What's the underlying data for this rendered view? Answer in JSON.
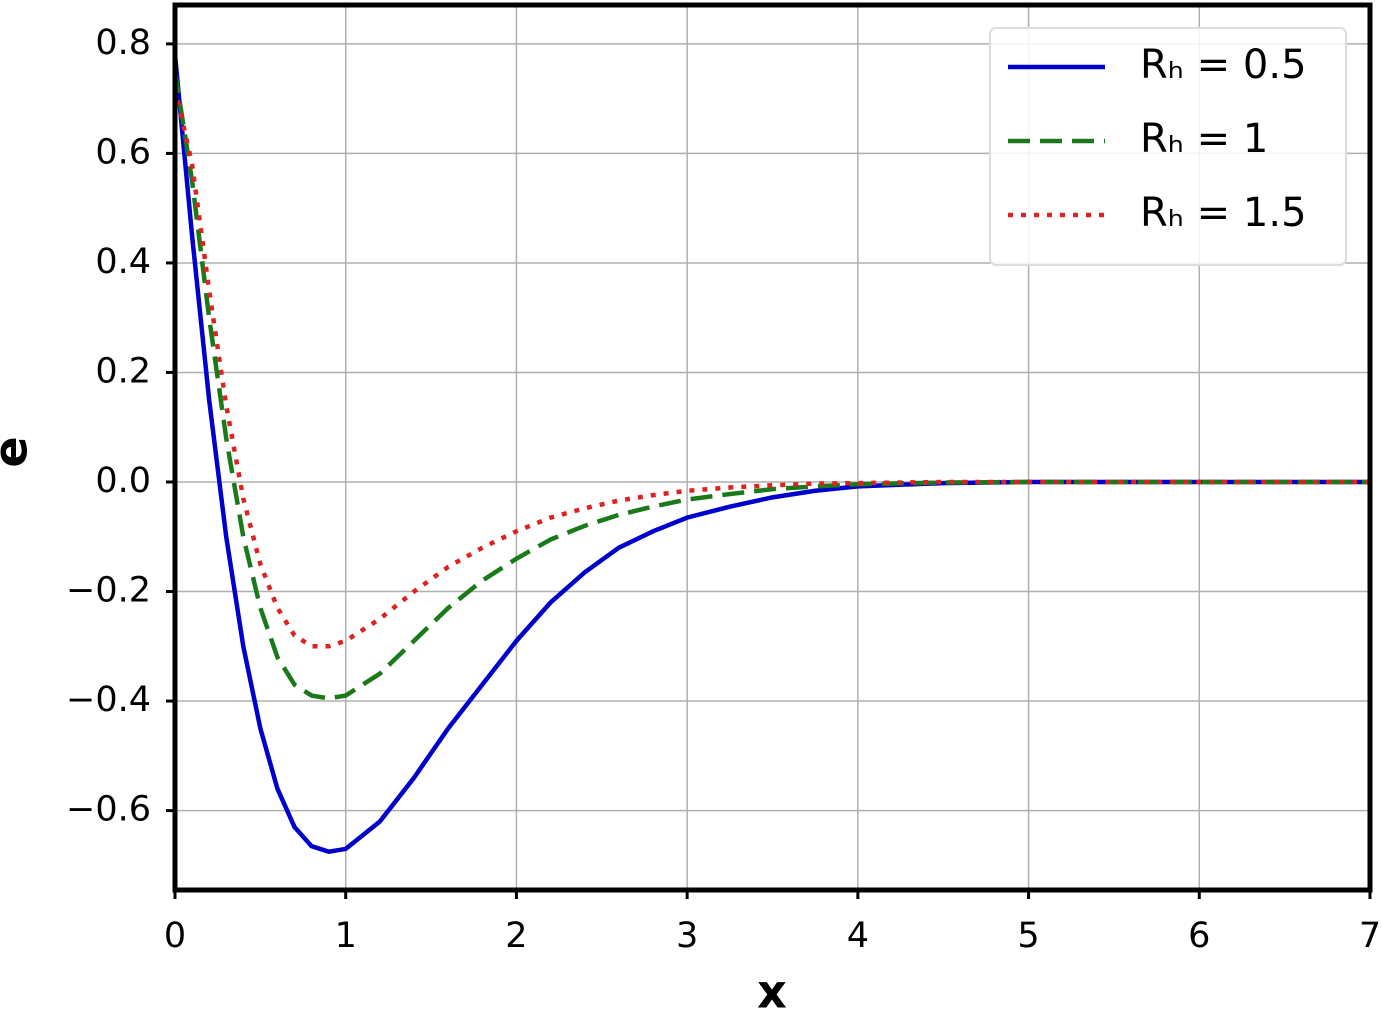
{
  "chart_data": {
    "type": "line",
    "xlabel": "x",
    "ylabel": "e",
    "x": [
      0,
      0.1,
      0.2,
      0.3,
      0.4,
      0.5,
      0.6,
      0.7,
      0.8,
      0.9,
      1.0,
      1.2,
      1.4,
      1.6,
      1.8,
      2.0,
      2.2,
      2.4,
      2.6,
      2.8,
      3.0,
      3.25,
      3.5,
      3.75,
      4,
      4.5,
      5,
      6,
      7
    ],
    "series": [
      {
        "name": "Rₕ = 0.5",
        "color": "#0000cc",
        "linestyle": "solid",
        "values": [
          0.78,
          0.45,
          0.15,
          -0.1,
          -0.3,
          -0.45,
          -0.56,
          -0.63,
          -0.665,
          -0.675,
          -0.67,
          -0.62,
          -0.54,
          -0.45,
          -0.37,
          -0.29,
          -0.22,
          -0.165,
          -0.12,
          -0.09,
          -0.065,
          -0.045,
          -0.028,
          -0.016,
          -0.008,
          -0.002,
          0,
          0,
          0
        ]
      },
      {
        "name": "Rₕ = 1",
        "color": "#1a7a1a",
        "linestyle": "dashed",
        "values": [
          0.75,
          0.55,
          0.3,
          0.08,
          -0.1,
          -0.23,
          -0.32,
          -0.37,
          -0.39,
          -0.395,
          -0.39,
          -0.35,
          -0.29,
          -0.23,
          -0.18,
          -0.14,
          -0.105,
          -0.08,
          -0.06,
          -0.045,
          -0.032,
          -0.022,
          -0.013,
          -0.008,
          -0.004,
          -0.001,
          0,
          0,
          0
        ]
      },
      {
        "name": "Rₕ = 1.5",
        "color": "#dd2222",
        "linestyle": "dotted",
        "values": [
          0.72,
          0.58,
          0.35,
          0.14,
          -0.03,
          -0.15,
          -0.23,
          -0.28,
          -0.3,
          -0.3,
          -0.29,
          -0.25,
          -0.2,
          -0.155,
          -0.12,
          -0.09,
          -0.065,
          -0.048,
          -0.034,
          -0.024,
          -0.016,
          -0.01,
          -0.006,
          -0.003,
          -0.002,
          0,
          0,
          0,
          0
        ]
      }
    ],
    "xlim": [
      0,
      7
    ],
    "xticks": [
      0,
      1,
      2,
      3,
      4,
      5,
      6,
      7
    ],
    "ylim": [
      -0.745,
      0.871
    ],
    "yticks": [
      {
        "value": -0.6,
        "label": "−0.6"
      },
      {
        "value": -0.4,
        "label": "−0.4"
      },
      {
        "value": -0.2,
        "label": "−0.2"
      },
      {
        "value": 0,
        "label": "0.0"
      },
      0.2,
      0.4,
      0.6,
      0.8
    ],
    "grid": true,
    "legend": "upper right"
  }
}
